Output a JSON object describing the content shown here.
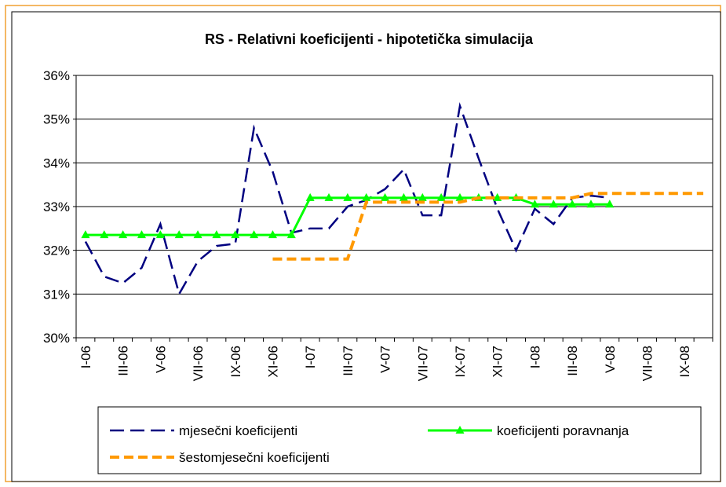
{
  "chart_data": {
    "type": "line",
    "title": "RS - Relativni koeficijenti - hipotetička simulacija",
    "categories": [
      "I-06",
      null,
      "III-06",
      null,
      "V-06",
      null,
      "VII-06",
      null,
      "IX-06",
      null,
      "XI-06",
      null,
      "I-07",
      null,
      "III-07",
      null,
      "V-07",
      null,
      "VII-07",
      null,
      "IX-07",
      null,
      "XI-07",
      null,
      "I-08",
      null,
      "III-08",
      null,
      "V-08",
      null,
      "VII-08",
      null,
      "IX-08",
      null
    ],
    "series": [
      {
        "name": "mjesečni koeficijenti",
        "color": "#000080",
        "style": "dashed",
        "values": [
          32.2,
          31.4,
          31.25,
          31.6,
          32.6,
          31.0,
          31.75,
          32.1,
          32.15,
          34.8,
          33.8,
          32.4,
          32.5,
          32.5,
          33.0,
          33.15,
          33.4,
          33.85,
          32.8,
          32.8,
          35.3,
          34.1,
          32.95,
          32.0,
          32.95,
          32.6,
          33.2,
          33.25,
          33.2,
          null,
          null,
          null,
          null,
          null
        ]
      },
      {
        "name": "koeficijenti poravnanja",
        "color": "#00ff00",
        "style": "solid-triangles",
        "values": [
          32.35,
          32.35,
          32.35,
          32.35,
          32.35,
          32.35,
          32.35,
          32.35,
          32.35,
          32.35,
          32.35,
          32.35,
          33.2,
          33.2,
          33.2,
          33.2,
          33.2,
          33.2,
          33.2,
          33.2,
          33.2,
          33.2,
          33.2,
          33.2,
          33.05,
          33.05,
          33.05,
          33.05,
          33.05,
          null,
          null,
          null,
          null,
          null
        ]
      },
      {
        "name": "šestomjesečni koeficijenti",
        "color": "#ff9900",
        "style": "thick-dashed",
        "values": [
          null,
          null,
          null,
          null,
          null,
          null,
          null,
          null,
          null,
          null,
          31.8,
          31.8,
          31.8,
          31.8,
          31.8,
          33.1,
          33.1,
          33.1,
          33.1,
          33.1,
          33.1,
          33.2,
          33.2,
          33.2,
          33.2,
          33.2,
          33.2,
          33.3,
          33.3,
          33.3,
          33.3,
          33.3,
          33.3,
          33.3
        ]
      }
    ],
    "ylim": [
      30,
      36
    ],
    "yticks": [
      {
        "value": 30,
        "label": "30%"
      },
      {
        "value": 31,
        "label": "31%"
      },
      {
        "value": 32,
        "label": "32%"
      },
      {
        "value": 33,
        "label": "33%"
      },
      {
        "value": 34,
        "label": "34%"
      },
      {
        "value": 35,
        "label": "35%"
      },
      {
        "value": 36,
        "label": "36%"
      }
    ],
    "grid": true
  }
}
